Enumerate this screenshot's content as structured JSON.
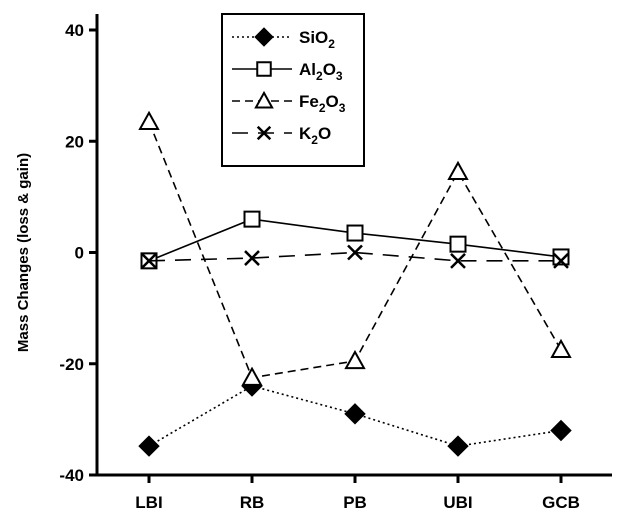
{
  "chart_data": {
    "type": "line",
    "categories": [
      "LBI",
      "RB",
      "PB",
      "UBI",
      "GCB"
    ],
    "ylabel": "Mass Changes (loss & gain)",
    "xlabel": "",
    "ylim": [
      -40,
      40
    ],
    "yticks": [
      -40,
      -20,
      0,
      20,
      40
    ],
    "grid": false,
    "legend_position": "top-center",
    "series": [
      {
        "name": "SiO2",
        "legend_parts": [
          [
            "SiO",
            false
          ],
          [
            "2",
            true
          ]
        ],
        "values": [
          -34.8,
          -24,
          -29,
          -34.8,
          -32
        ],
        "marker": "diamond-filled",
        "line_style": "dotted",
        "color": "#000000"
      },
      {
        "name": "Al2O3",
        "legend_parts": [
          [
            "Al",
            false
          ],
          [
            "2",
            true
          ],
          [
            "O",
            false
          ],
          [
            "3",
            true
          ]
        ],
        "values": [
          -1.5,
          6,
          3.5,
          1.5,
          -0.8
        ],
        "marker": "square-open",
        "line_style": "solid",
        "color": "#000000"
      },
      {
        "name": "Fe2O3",
        "legend_parts": [
          [
            "Fe",
            false
          ],
          [
            "2",
            true
          ],
          [
            "O",
            false
          ],
          [
            "3",
            true
          ]
        ],
        "values": [
          23.5,
          -22.5,
          -19.5,
          14.5,
          -17.5
        ],
        "marker": "triangle-open",
        "line_style": "dashed",
        "color": "#000000"
      },
      {
        "name": "K2O",
        "legend_parts": [
          [
            "K",
            false
          ],
          [
            "2",
            true
          ],
          [
            "O",
            false
          ]
        ],
        "values": [
          -1.5,
          -1,
          0,
          -1.5,
          -1.5
        ],
        "marker": "x",
        "line_style": "longdash",
        "color": "#000000"
      }
    ]
  }
}
